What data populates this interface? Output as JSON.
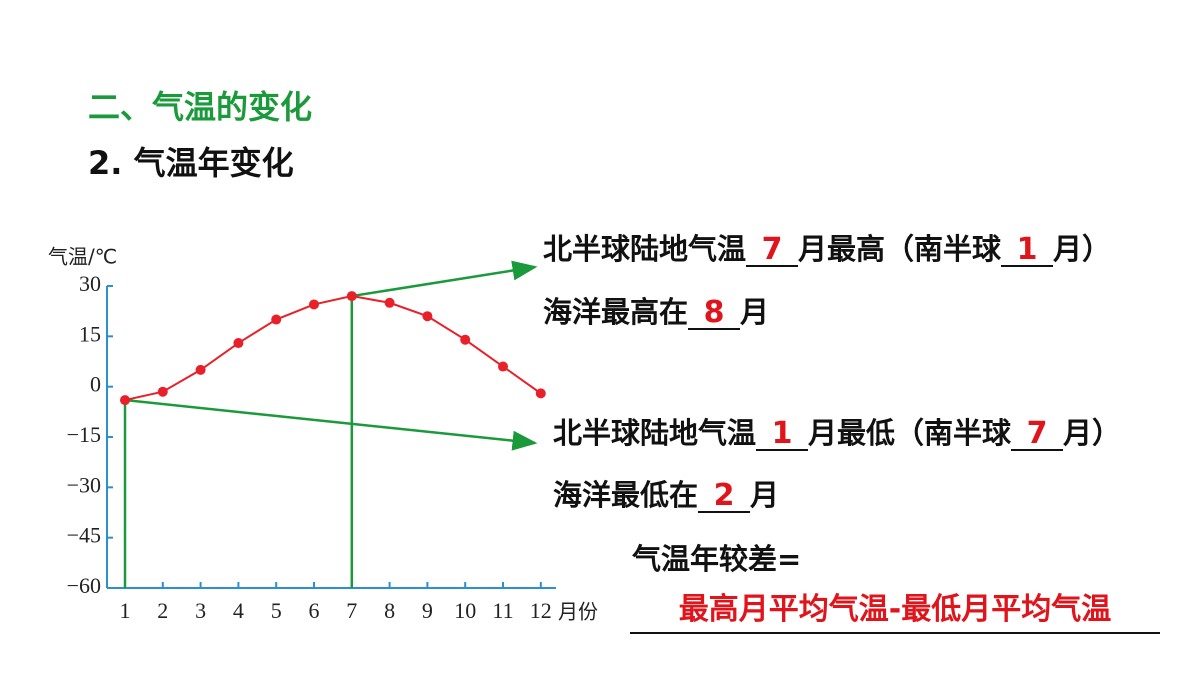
{
  "header": {
    "section": "二、气温的变化",
    "subsection": "2. 气温年变化"
  },
  "chart_data": {
    "type": "line",
    "y_label": "气温/℃",
    "x_label": "月份",
    "categories": [
      "1",
      "2",
      "3",
      "4",
      "5",
      "6",
      "7",
      "8",
      "9",
      "10",
      "11",
      "12"
    ],
    "series": [
      {
        "color": "#e8202a",
        "values": [
          -4,
          -1.5,
          5,
          13,
          20,
          24.5,
          27,
          25,
          21,
          14,
          6,
          -2
        ]
      }
    ],
    "ylim": [
      -60,
      30
    ],
    "yticks": [
      {
        "value": -60,
        "label": "−60"
      },
      {
        "value": -45,
        "label": "−45"
      },
      {
        "value": -30,
        "label": "−30"
      },
      {
        "value": -15,
        "label": "−15"
      },
      0,
      15,
      30
    ]
  },
  "statements": [
    {
      "parts": [
        "北半球陆地气温",
        "7",
        "月最高（南半球",
        "1",
        "月）"
      ]
    },
    {
      "parts": [
        "海洋最高在",
        "8",
        "月"
      ]
    },
    {
      "parts": [
        "北半球陆地气温",
        "1",
        "月最低（南半球",
        "7",
        "月）"
      ]
    },
    {
      "parts": [
        "海洋最低在",
        "2",
        "月"
      ]
    }
  ],
  "range": {
    "label": "气温年较差=",
    "answer": "最高月平均气温-最低月平均气温"
  }
}
